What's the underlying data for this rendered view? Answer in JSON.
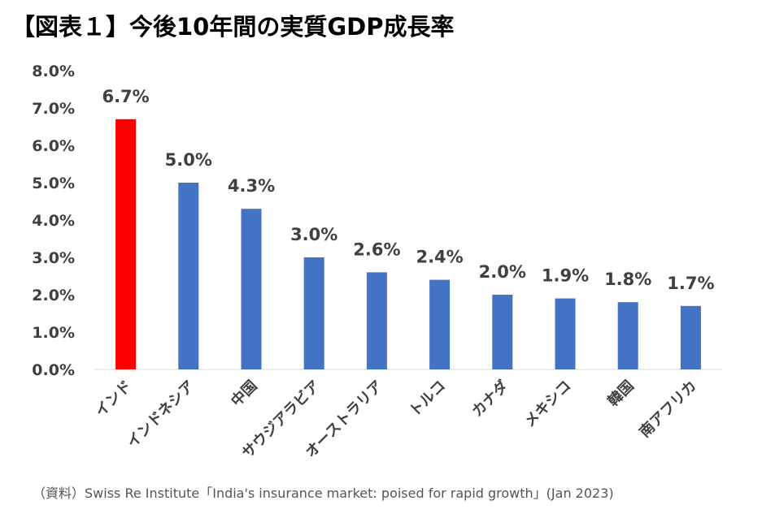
{
  "title": "【図表１】今後10年間の実質GDP成長率",
  "source": "（資料）Swiss Re Institute「India's insurance market: poised for rapid growth」(Jan 2023)",
  "chart_data": {
    "type": "bar",
    "categories": [
      "インド",
      "インドネシア",
      "中国",
      "サウジアラビア",
      "オーストラリア",
      "トルコ",
      "カナダ",
      "メキシコ",
      "韓国",
      "南アフリカ"
    ],
    "values": [
      6.7,
      5.0,
      4.3,
      3.0,
      2.6,
      2.4,
      2.0,
      1.9,
      1.8,
      1.7
    ],
    "data_labels": [
      "6.7%",
      "5.0%",
      "4.3%",
      "3.0%",
      "2.6%",
      "2.4%",
      "2.0%",
      "1.9%",
      "1.8%",
      "1.7%"
    ],
    "ylim": [
      0,
      8
    ],
    "yticks": [
      0,
      1,
      2,
      3,
      4,
      5,
      6,
      7,
      8
    ],
    "ytick_labels": [
      "0.0%",
      "1.0%",
      "2.0%",
      "3.0%",
      "4.0%",
      "5.0%",
      "6.0%",
      "7.0%",
      "8.0%"
    ],
    "bar_colors": [
      "#ff0000",
      "#4472c4",
      "#4472c4",
      "#4472c4",
      "#4472c4",
      "#4472c4",
      "#4472c4",
      "#4472c4",
      "#4472c4",
      "#4472c4"
    ],
    "label_color": "#404040",
    "grid": false,
    "legend": "none"
  }
}
